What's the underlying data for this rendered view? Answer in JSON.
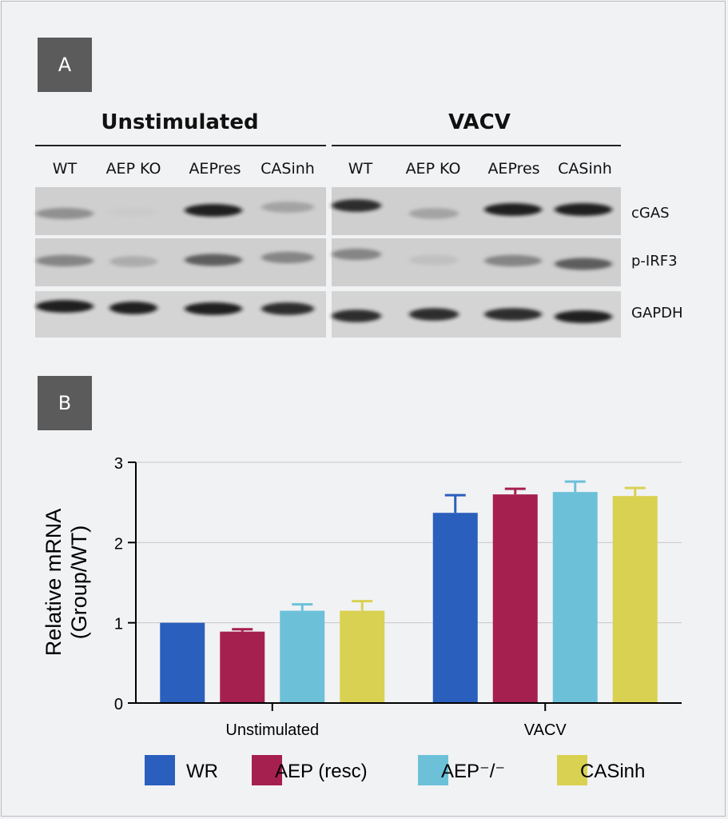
{
  "panels": {
    "a": "A",
    "b": "B"
  },
  "blot": {
    "conditions": [
      "Unstimulated",
      "VACV"
    ],
    "lanes": [
      "WT",
      "AEP KO",
      "AEPres",
      "CASinh"
    ],
    "rows": [
      "cGAS",
      "p-IRF3",
      "GAPDH"
    ],
    "band_intensity": [
      [
        0.55,
        0.08,
        0.95,
        0.45,
        0.9,
        0.45,
        0.95,
        0.95
      ],
      [
        0.6,
        0.4,
        0.75,
        0.6,
        0.6,
        0.25,
        0.6,
        0.75
      ],
      [
        0.95,
        0.95,
        0.95,
        0.9,
        0.9,
        0.9,
        0.9,
        0.95
      ]
    ]
  },
  "chart_data": {
    "type": "bar",
    "categories": [
      "Unstimulated",
      "VACV"
    ],
    "series": [
      {
        "name": "WR",
        "values": [
          1.0,
          2.37
        ],
        "errors": [
          0.0,
          0.22
        ],
        "color": "#2a5fbd"
      },
      {
        "name": "AEP (resc)",
        "values": [
          0.89,
          2.6
        ],
        "errors": [
          0.03,
          0.07
        ],
        "color": "#a6204f"
      },
      {
        "name": "AEP⁻/⁻",
        "values": [
          1.15,
          2.63
        ],
        "errors": [
          0.08,
          0.13
        ],
        "color": "#6cc1d9"
      },
      {
        "name": "CASinh",
        "values": [
          1.15,
          2.58
        ],
        "errors": [
          0.12,
          0.1
        ],
        "color": "#d9d151"
      }
    ],
    "ylabel_line1": "Relative mRNA",
    "ylabel_line2": "(Group/WT)",
    "ylim": [
      0,
      3
    ],
    "yticks": [
      "0",
      "1",
      "2",
      "3"
    ],
    "grid": true,
    "legend": "bottom"
  }
}
